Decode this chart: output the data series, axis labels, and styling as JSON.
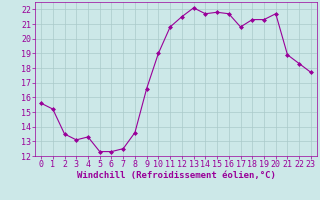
{
  "x": [
    0,
    1,
    2,
    3,
    4,
    5,
    6,
    7,
    8,
    9,
    10,
    11,
    12,
    13,
    14,
    15,
    16,
    17,
    18,
    19,
    20,
    21,
    22,
    23
  ],
  "y": [
    15.6,
    15.2,
    13.5,
    13.1,
    13.3,
    12.3,
    12.3,
    12.5,
    13.6,
    16.6,
    19.0,
    20.8,
    21.5,
    22.1,
    21.7,
    21.8,
    21.7,
    20.8,
    21.3,
    21.3,
    21.7,
    18.9,
    18.3,
    17.7
  ],
  "line_color": "#990099",
  "marker": "D",
  "marker_size": 2.0,
  "line_width": 0.8,
  "bg_color": "#cce8e8",
  "grid_color": "#aacaca",
  "xlabel": "Windchill (Refroidissement éolien,°C)",
  "xlabel_color": "#990099",
  "xlim": [
    -0.5,
    23.5
  ],
  "ylim": [
    12,
    22.5
  ],
  "yticks": [
    12,
    13,
    14,
    15,
    16,
    17,
    18,
    19,
    20,
    21,
    22
  ],
  "xticks": [
    0,
    1,
    2,
    3,
    4,
    5,
    6,
    7,
    8,
    9,
    10,
    11,
    12,
    13,
    14,
    15,
    16,
    17,
    18,
    19,
    20,
    21,
    22,
    23
  ],
  "tick_label_color": "#990099",
  "spine_color": "#990099",
  "tick_font_size": 6,
  "xlabel_font_size": 6.5
}
